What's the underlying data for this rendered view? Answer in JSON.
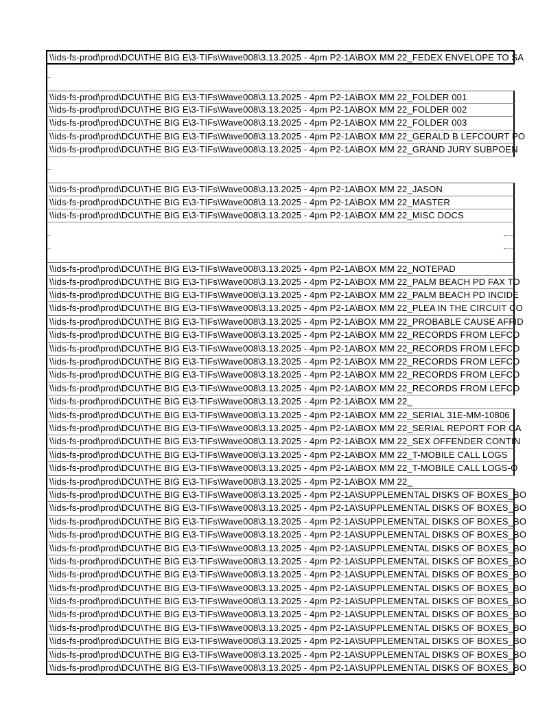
{
  "page": {
    "background": "#ffffff",
    "border_color": "#000000",
    "separator_color": "#808080",
    "text_color": "#000000"
  },
  "table": {
    "path_prefix": "\\\\ids-fs-prod\\prod\\DCU\\THE BIG E\\3-TIFs\\Wave008\\3.13.2025 - 4pm P2-1A\\"
  },
  "rows": [
    {
      "kind": "header",
      "suffix": "BOX MM 22_FEDEX ENVELOPE TO SA"
    },
    {
      "kind": "blank",
      "variant": "g1",
      "ticks": "left"
    },
    {
      "kind": "blank",
      "variant": "g1"
    },
    {
      "kind": "cell",
      "first": true,
      "suffix": "BOX MM 22_FOLDER 001"
    },
    {
      "kind": "cell",
      "suffix": "BOX MM 22_FOLDER 002"
    },
    {
      "kind": "cell",
      "suffix": "BOX MM 22_FOLDER 003"
    },
    {
      "kind": "cell",
      "suffix": "BOX MM 22_GERALD B LEFCOURT PO"
    },
    {
      "kind": "cell",
      "suffix": "BOX MM 22_GRAND JURY SUBPOEN"
    },
    {
      "kind": "blank",
      "variant": "g2",
      "ticks": "left"
    },
    {
      "kind": "blank",
      "variant": "g2"
    },
    {
      "kind": "cell",
      "first": true,
      "suffix": "BOX MM 22_JASON"
    },
    {
      "kind": "cell",
      "suffix": "BOX MM 22_MASTER"
    },
    {
      "kind": "cell",
      "suffix": "BOX MM 22_MISC DOCS"
    },
    {
      "kind": "blank",
      "variant": "g3",
      "right_border": true,
      "ticks": "both"
    },
    {
      "kind": "blank",
      "variant": "g3",
      "right_border": true,
      "ticks": "both"
    },
    {
      "kind": "blank",
      "variant": "g3",
      "right_border": true
    },
    {
      "kind": "cell",
      "first": true,
      "suffix": "BOX MM 22_NOTEPAD"
    },
    {
      "kind": "cell",
      "suffix": "BOX MM 22_PALM BEACH PD FAX TO"
    },
    {
      "kind": "cell",
      "suffix": "BOX MM 22_PALM BEACH PD INCIDE"
    },
    {
      "kind": "cell",
      "suffix": "BOX MM 22_PLEA IN THE CIRCUIT CO"
    },
    {
      "kind": "cell",
      "suffix": "BOX MM 22_PROBABLE CAUSE AFFID"
    },
    {
      "kind": "cell",
      "suffix": "BOX MM 22_RECORDS FROM LEFCO"
    },
    {
      "kind": "cell",
      "suffix": "BOX MM 22_RECORDS FROM LEFCO"
    },
    {
      "kind": "cell",
      "suffix": "BOX MM 22_RECORDS FROM LEFCO"
    },
    {
      "kind": "cell",
      "suffix": "BOX MM 22_RECORDS FROM LEFCO"
    },
    {
      "kind": "cell",
      "suffix": "BOX MM 22_RECORDS FROM LEFCO"
    },
    {
      "kind": "cell",
      "no_right": true,
      "suffix": "BOX MM 22_"
    },
    {
      "kind": "cell",
      "suffix": "BOX MM 22_SERIAL 31E-MM-10806"
    },
    {
      "kind": "cell",
      "suffix": "BOX MM 22_SERIAL REPORT FOR CA"
    },
    {
      "kind": "cell",
      "suffix": "BOX MM 22_SEX OFFENDER CONTIN"
    },
    {
      "kind": "cell",
      "suffix": "BOX MM 22_T-MOBILE CALL LOGS"
    },
    {
      "kind": "cell",
      "suffix": "BOX MM 22_T-MOBILE CALL LOGS-O"
    },
    {
      "kind": "cell",
      "no_right": true,
      "suffix": "BOX MM 22_"
    },
    {
      "kind": "cell",
      "suffix": "SUPPLEMENTAL DISKS OF BOXES_BO"
    },
    {
      "kind": "cell",
      "suffix": "SUPPLEMENTAL DISKS OF BOXES_BO"
    },
    {
      "kind": "cell",
      "suffix": "SUPPLEMENTAL DISKS OF BOXES_BO"
    },
    {
      "kind": "cell",
      "suffix": "SUPPLEMENTAL DISKS OF BOXES_BO"
    },
    {
      "kind": "cell",
      "suffix": "SUPPLEMENTAL DISKS OF BOXES_BO"
    },
    {
      "kind": "cell",
      "suffix": "SUPPLEMENTAL DISKS OF BOXES_BO"
    },
    {
      "kind": "cell",
      "suffix": "SUPPLEMENTAL DISKS OF BOXES_BO"
    },
    {
      "kind": "cell",
      "suffix": "SUPPLEMENTAL DISKS OF BOXES_BO"
    },
    {
      "kind": "cell",
      "suffix": "SUPPLEMENTAL DISKS OF BOXES_BO"
    },
    {
      "kind": "cell",
      "suffix": "SUPPLEMENTAL DISKS OF BOXES_BO"
    },
    {
      "kind": "cell",
      "suffix": "SUPPLEMENTAL DISKS OF BOXES_BO"
    },
    {
      "kind": "cell",
      "suffix": "SUPPLEMENTAL DISKS OF BOXES_BO"
    },
    {
      "kind": "cell",
      "suffix": "SUPPLEMENTAL DISKS OF BOXES_BO"
    },
    {
      "kind": "cell",
      "last": true,
      "suffix": "SUPPLEMENTAL DISKS OF BOXES_BO"
    }
  ]
}
